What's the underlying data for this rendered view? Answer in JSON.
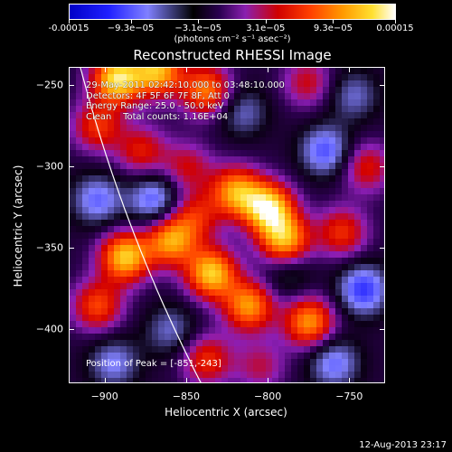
{
  "colorbar": {
    "labels": [
      "-0.00015",
      "−9.3e−05",
      "−3.1e−05",
      "3.1e−05",
      "9.3e−05",
      "0.00015"
    ],
    "values": [
      -0.00015,
      -9.3e-05,
      -3.1e-05,
      3.1e-05,
      9.3e-05,
      0.00015
    ],
    "unit": "(photons cm⁻² s⁻¹ asec⁻²)"
  },
  "chart_data": {
    "type": "heatmap",
    "title": "Reconstructed RHESSI Image",
    "xlabel": "Heliocentric X (arcsec)",
    "ylabel": "Heliocentric Y (arcsec)",
    "xlim": [
      -922,
      -728
    ],
    "ylim": [
      -433,
      -239
    ],
    "xticks": [
      -900,
      -850,
      -800,
      -750
    ],
    "yticks": [
      -250,
      -300,
      -350,
      -400
    ],
    "xtick_labels": [
      "−900",
      "−850",
      "−800",
      "−750"
    ],
    "ytick_labels": [
      "−250",
      "−300",
      "−350",
      "−400"
    ],
    "clim": [
      -0.00015,
      0.00015
    ],
    "limb_visible": true,
    "peak": [
      -851,
      -243
    ],
    "blobs": [
      {
        "x": -893,
        "y": -246,
        "v": 0.00015
      },
      {
        "x": -868,
        "y": -241,
        "v": 0.00013
      },
      {
        "x": -838,
        "y": -253,
        "v": 0.00011
      },
      {
        "x": -905,
        "y": -275,
        "v": 8e-05
      },
      {
        "x": -878,
        "y": -290,
        "v": 7e-05
      },
      {
        "x": -816,
        "y": -266,
        "v": -5e-05
      },
      {
        "x": -776,
        "y": -248,
        "v": 6e-05
      },
      {
        "x": -748,
        "y": -256,
        "v": -5e-05
      },
      {
        "x": -765,
        "y": -290,
        "v": -8e-05
      },
      {
        "x": -740,
        "y": -300,
        "v": 7e-05
      },
      {
        "x": -850,
        "y": -300,
        "v": 6e-05
      },
      {
        "x": -800,
        "y": -325,
        "v": 0.00015
      },
      {
        "x": -820,
        "y": -315,
        "v": 0.00012
      },
      {
        "x": -790,
        "y": -345,
        "v": 0.00013
      },
      {
        "x": -845,
        "y": -330,
        "v": 7e-05
      },
      {
        "x": -870,
        "y": -320,
        "v": -8e-05
      },
      {
        "x": -905,
        "y": -320,
        "v": -7e-05
      },
      {
        "x": -888,
        "y": -355,
        "v": 0.00014
      },
      {
        "x": -860,
        "y": -345,
        "v": 0.00012
      },
      {
        "x": -905,
        "y": -385,
        "v": 9e-05
      },
      {
        "x": -835,
        "y": -365,
        "v": 0.00014
      },
      {
        "x": -812,
        "y": -385,
        "v": 0.00012
      },
      {
        "x": -775,
        "y": -395,
        "v": 0.00012
      },
      {
        "x": -755,
        "y": -340,
        "v": 8e-05
      },
      {
        "x": -742,
        "y": -375,
        "v": -9e-05
      },
      {
        "x": -760,
        "y": -420,
        "v": -7e-05
      },
      {
        "x": -895,
        "y": -420,
        "v": -6e-05
      },
      {
        "x": -860,
        "y": -400,
        "v": -5e-05
      },
      {
        "x": -838,
        "y": -418,
        "v": 8e-05
      },
      {
        "x": -805,
        "y": -422,
        "v": 5e-05
      },
      {
        "x": -788,
        "y": -365,
        "v": -4e-05
      }
    ]
  },
  "info": {
    "lines": [
      "29-May-2011 02:42:10.000 to 03:48:10.000",
      "Detectors: 4F 5F 6F 7F 8F, Att 0",
      "Energy Range: 25.0 - 50.0 keV",
      "Clean    Total counts: 1.16E+04"
    ],
    "peak_label": "Position of Peak = [-851,-243]"
  },
  "timestamp": "12-Aug-2013 23:17",
  "colors": {
    "background": "#000000",
    "foreground": "#ffffff"
  }
}
